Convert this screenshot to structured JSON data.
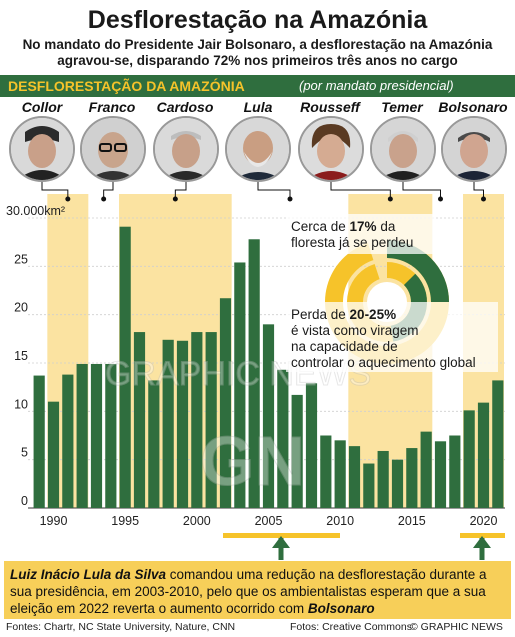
{
  "header": {
    "title": "Desflorestação na Amazónia",
    "subtitle": "No mandato do Presidente Jair Bolsonaro, a desflorestação na Amazónia agravou-se, disparando 72% nos primeiros três anos no cargo"
  },
  "section": {
    "title": "DESFLORESTAÇÃO DA AMAZÓNIA",
    "subtitle": "(por mandato presidencial)"
  },
  "presidents": [
    {
      "name": "Collor"
    },
    {
      "name": "Franco"
    },
    {
      "name": "Cardoso"
    },
    {
      "name": "Lula"
    },
    {
      "name": "Rousseff"
    },
    {
      "name": "Temer"
    },
    {
      "name": "Bolsonaro"
    }
  ],
  "annotations": {
    "forest_lost_pre": "Cerca de ",
    "forest_lost_value": "17%",
    "forest_lost_post": " da",
    "forest_lost_line2": "floresta já se perdeu",
    "tipping_pre": "Perda de ",
    "tipping_value": "20-25%",
    "tipping_line2": "é vista como viragem",
    "tipping_line3": "na capacidade de",
    "tipping_line4": "controlar o aquecimento global"
  },
  "watermark": {
    "letters": "GN",
    "text": "GRAPHIC NEWS"
  },
  "chart_data": {
    "type": "bar",
    "x": [
      1989,
      1990,
      1991,
      1992,
      1993,
      1994,
      1995,
      1996,
      1997,
      1998,
      1999,
      2000,
      2001,
      2002,
      2003,
      2004,
      2005,
      2006,
      2007,
      2008,
      2009,
      2010,
      2011,
      2012,
      2013,
      2014,
      2015,
      2016,
      2017,
      2018,
      2019,
      2020,
      2021
    ],
    "values": [
      13.7,
      11.0,
      13.8,
      14.9,
      14.9,
      14.9,
      29.1,
      18.2,
      13.2,
      17.4,
      17.3,
      18.2,
      18.2,
      21.7,
      25.4,
      27.8,
      19.0,
      14.3,
      11.7,
      12.9,
      7.5,
      7.0,
      6.4,
      4.6,
      5.9,
      5.0,
      6.2,
      7.9,
      6.9,
      7.5,
      10.1,
      10.9,
      13.2
    ],
    "xticks": [
      "1990",
      "1995",
      "2000",
      "2005",
      "2010",
      "2015",
      "2020"
    ],
    "yticks": [
      "30.000km²",
      "25",
      "20",
      "15",
      "10",
      "5",
      "0"
    ],
    "ylim": [
      0,
      30
    ],
    "bar_color": "#2f6e3e",
    "term_shade_color": "#fbe3a1",
    "terms": [
      {
        "president": "Collor",
        "start": 1990,
        "end": 1992,
        "shaded": true
      },
      {
        "president": "Franco",
        "start": 1993,
        "end": 1994,
        "shaded": false
      },
      {
        "president": "Cardoso",
        "start": 1995,
        "end": 2002,
        "shaded": true
      },
      {
        "president": "Lula",
        "start": 2003,
        "end": 2010,
        "shaded": false
      },
      {
        "president": "Rousseff",
        "start": 2011,
        "end": 2016,
        "shaded": true
      },
      {
        "president": "Temer",
        "start": 2016,
        "end": 2018,
        "shaded": false
      },
      {
        "president": "Bolsonaro",
        "start": 2019,
        "end": 2021,
        "shaded": true
      }
    ],
    "donut": {
      "lost_percent": 17,
      "tipping_range": [
        20,
        25
      ]
    },
    "grid": true
  },
  "bottom": {
    "name1": "Luiz Inácio Lula da Silva",
    "text1": " comandou uma redução na desflorestação durante a sua presidência, em 2003-2010, pelo que os ambientalistas esperam que a sua eleição em 2022 reverta o aumento ocorrido com ",
    "name2": "Bolsonaro"
  },
  "footer": {
    "sources": "Fontes: Chartr, NC State University, Nature, CNN",
    "photos": "Fotos: Creative Commons",
    "credit": "© GRAPHIC NEWS"
  },
  "colors": {
    "green": "#2f6e3e",
    "yellow": "#f6c32a",
    "light_yellow": "#fbe3a1"
  }
}
